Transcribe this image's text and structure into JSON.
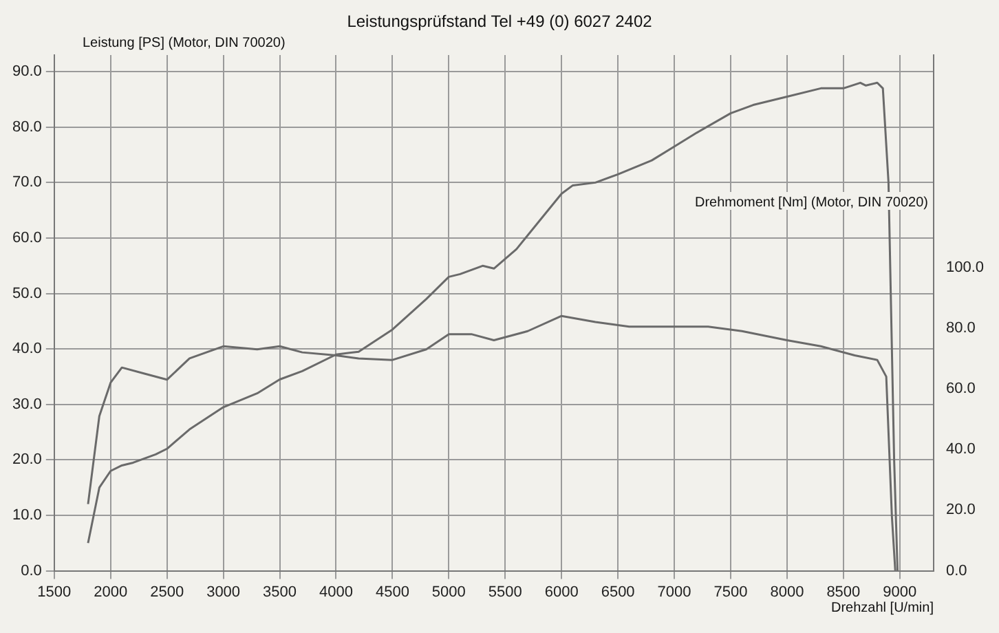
{
  "chart_data": {
    "type": "line",
    "title": "Leistungsprüfstand Tel +49 (0) 6027 2402",
    "ylabel": "Leistung [PS] (Motor, DIN 70020)",
    "y2label": "Drehmoment [Nm] (Motor, DIN 70020)",
    "xlabel": "Drehzahl [U/min]",
    "xlim": [
      1500,
      9300
    ],
    "xticks": [
      1500,
      2000,
      2500,
      3000,
      3500,
      4000,
      4500,
      5000,
      5500,
      6000,
      6500,
      7000,
      7500,
      8000,
      8500,
      9000
    ],
    "ylim": [
      0,
      93
    ],
    "yticks": [
      {
        "value": 0,
        "label": "0.0"
      },
      {
        "value": 10,
        "label": "10.0"
      },
      {
        "value": 20,
        "label": "20.0"
      },
      {
        "value": 30,
        "label": "30.0"
      },
      {
        "value": 40,
        "label": "40.0"
      },
      {
        "value": 50,
        "label": "50.0"
      },
      {
        "value": 60,
        "label": "60.0"
      },
      {
        "value": 70,
        "label": "70.0"
      },
      {
        "value": 80,
        "label": "80.0"
      },
      {
        "value": 90,
        "label": "90.0"
      }
    ],
    "y2lim": [
      0,
      170
    ],
    "y2ticks": [
      {
        "value": 0,
        "label": "0.0"
      },
      {
        "value": 20,
        "label": "20.0"
      },
      {
        "value": 40,
        "label": "40.0"
      },
      {
        "value": 60,
        "label": "60.0"
      },
      {
        "value": 80,
        "label": "80.0"
      },
      {
        "value": 100,
        "label": "100.0"
      }
    ],
    "grid": true,
    "legend": false,
    "marker": "none",
    "line_style": "solid",
    "series": [
      {
        "color": "#6a6a6a",
        "x": [
          1800,
          1850,
          1900,
          2000,
          2100,
          2200,
          2400,
          2500,
          2700,
          3000,
          3300,
          3500,
          3700,
          4000,
          4200,
          4500,
          4800,
          5000,
          5100,
          5300,
          5400,
          5600,
          5800,
          6000,
          6100,
          6300,
          6500,
          6800,
          7000,
          7200,
          7500,
          7700,
          8000,
          8300,
          8500,
          8650,
          8700,
          8800,
          8850,
          8900,
          8950,
          8980
        ],
        "values": [
          5,
          10,
          15,
          18,
          19,
          19.5,
          21,
          22,
          25.5,
          29.5,
          32,
          34.5,
          36,
          39,
          39.5,
          43.5,
          49,
          53,
          53.5,
          55,
          54.5,
          58,
          63,
          68,
          69.5,
          70,
          71.5,
          74,
          76.5,
          79,
          82.5,
          84,
          85.5,
          87,
          87,
          88,
          87.5,
          88,
          87,
          70,
          20,
          0
        ]
      },
      {
        "color": "#6a6a6a",
        "axis": "y2",
        "x": [
          1800,
          1900,
          2000,
          2100,
          2300,
          2500,
          2700,
          3000,
          3300,
          3500,
          3700,
          4000,
          4200,
          4500,
          4800,
          5000,
          5200,
          5400,
          5700,
          6000,
          6300,
          6600,
          7000,
          7300,
          7600,
          8000,
          8300,
          8600,
          8800,
          8880,
          8930,
          8960
        ],
        "values": [
          22,
          51,
          62,
          67,
          65,
          63,
          70,
          74,
          73,
          74,
          72,
          71,
          70,
          69.5,
          73,
          78,
          78,
          76,
          79,
          84,
          82,
          80.5,
          80.5,
          80.5,
          79,
          76,
          74,
          71,
          69.5,
          64,
          18,
          0
        ]
      }
    ]
  }
}
